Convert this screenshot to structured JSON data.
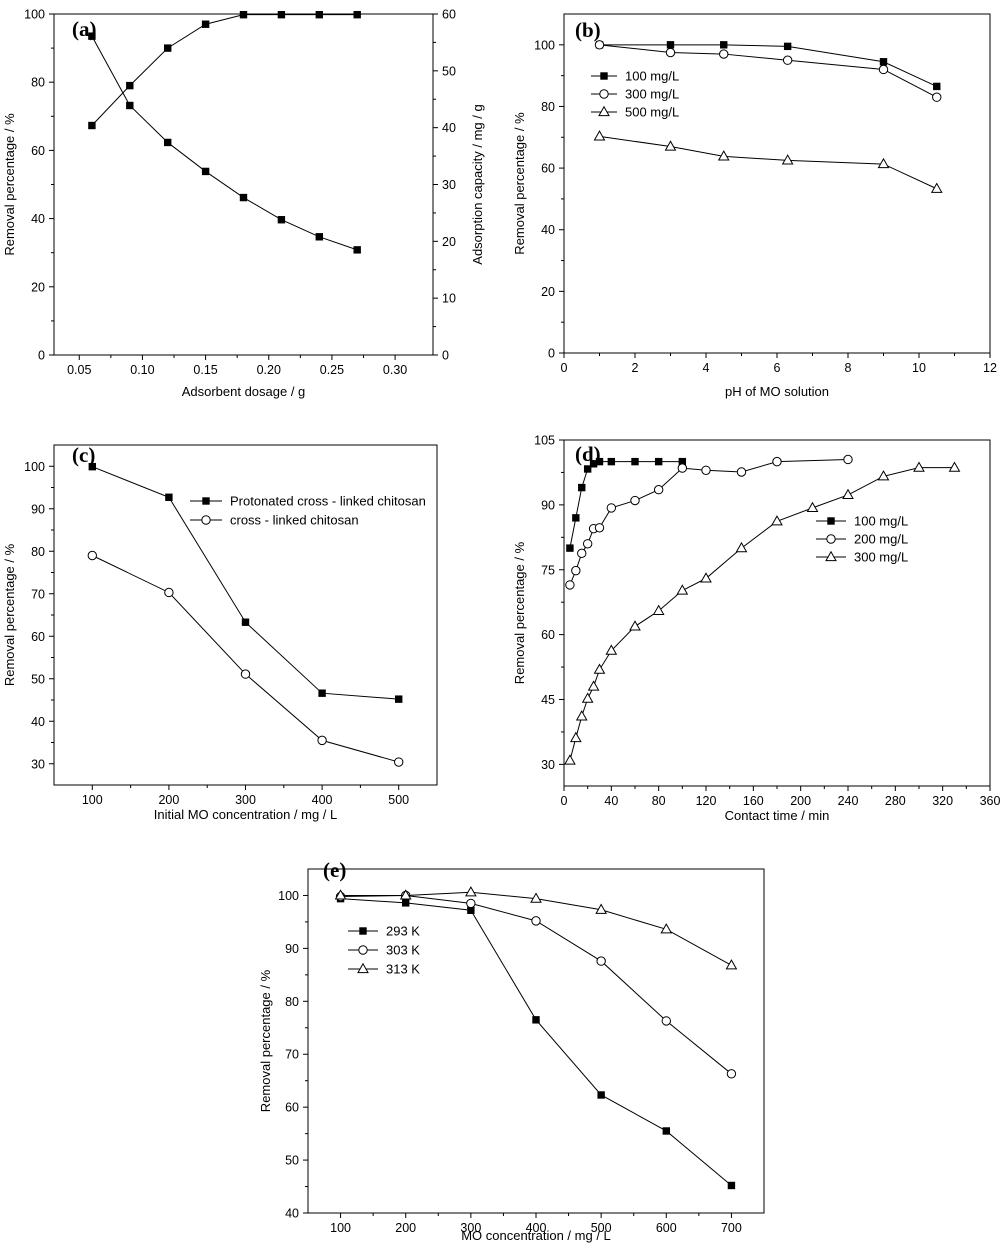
{
  "chart_data": [
    {
      "panel": "(a)",
      "type": "line",
      "xlabel": "Adsorbent dosage / g",
      "ylabel": "Removal percentage / %",
      "y2label": "Adsorption capacity / mg / g",
      "xlim": [
        0.03,
        0.33
      ],
      "ylim": [
        0,
        100
      ],
      "y2lim": [
        0,
        60
      ],
      "xticks": [
        "0.05",
        "0.10",
        "0.15",
        "0.20",
        "0.25",
        "0.30"
      ],
      "yticks": [
        "0",
        "20",
        "40",
        "60",
        "80",
        "100"
      ],
      "y2ticks": [
        "0",
        "10",
        "20",
        "30",
        "40",
        "50",
        "60"
      ],
      "series": [
        {
          "marker": "filled-square",
          "axis": "left",
          "x": [
            0.06,
            0.09,
            0.12,
            0.15,
            0.18,
            0.21,
            0.24,
            0.27
          ],
          "y": [
            67.3,
            79,
            90,
            97,
            99.8,
            99.8,
            99.8,
            99.8
          ]
        },
        {
          "marker": "filled-square",
          "axis": "right",
          "x": [
            0.06,
            0.09,
            0.12,
            0.15,
            0.18,
            0.21,
            0.24,
            0.27
          ],
          "y": [
            56.1,
            43.9,
            37.4,
            32.3,
            27.7,
            23.8,
            20.8,
            18.5
          ]
        }
      ]
    },
    {
      "panel": "(b)",
      "type": "line",
      "xlabel": "pH of MO solution",
      "ylabel": "Removal percentage / %",
      "xlim": [
        0,
        12
      ],
      "ylim": [
        0,
        110
      ],
      "xticks": [
        "0",
        "2",
        "4",
        "6",
        "8",
        "10",
        "12"
      ],
      "yticks": [
        "0",
        "20",
        "40",
        "60",
        "80",
        "100"
      ],
      "legend_position": "top-left",
      "series": [
        {
          "name": "100 mg/L",
          "marker": "filled-square",
          "x": [
            1,
            3,
            4.5,
            6.3,
            9,
            10.5
          ],
          "y": [
            100,
            100,
            100,
            99.5,
            94.5,
            86.5
          ]
        },
        {
          "name": "300 mg/L",
          "marker": "open-circle",
          "x": [
            1,
            3,
            4.5,
            6.3,
            9,
            10.5
          ],
          "y": [
            100,
            97.5,
            97,
            95,
            92,
            83
          ]
        },
        {
          "name": "500 mg/L",
          "marker": "open-triangle",
          "x": [
            1,
            3,
            4.5,
            6.3,
            9,
            10.5
          ],
          "y": [
            70.3,
            67,
            63.8,
            62.5,
            61.3,
            53.3
          ]
        }
      ]
    },
    {
      "panel": "(c)",
      "type": "line",
      "xlabel": "Initial MO concentration / mg / L",
      "ylabel": "Removal percentage / %",
      "xlim": [
        50,
        550
      ],
      "ylim": [
        25,
        105
      ],
      "xticks": [
        "100",
        "200",
        "300",
        "400",
        "500"
      ],
      "yticks": [
        "30",
        "40",
        "50",
        "60",
        "70",
        "80",
        "90",
        "100"
      ],
      "legend_position": "top-right",
      "series": [
        {
          "name": "Protonated cross - linked chitosan",
          "marker": "filled-square",
          "x": [
            100,
            200,
            300,
            400,
            500
          ],
          "y": [
            99.9,
            92.7,
            63.3,
            46.6,
            45.2
          ]
        },
        {
          "name": "cross - linked chitosan",
          "marker": "open-circle",
          "x": [
            100,
            200,
            300,
            400,
            500
          ],
          "y": [
            79,
            70.3,
            51.1,
            35.5,
            30.4
          ]
        }
      ]
    },
    {
      "panel": "(d)",
      "type": "line",
      "xlabel": "Contact time / min",
      "ylabel": "Removal percentage / %",
      "xlim": [
        0,
        360
      ],
      "ylim": [
        25,
        105
      ],
      "xticks": [
        "0",
        "40",
        "80",
        "120",
        "160",
        "200",
        "240",
        "280",
        "320",
        "360"
      ],
      "yticks": [
        "30",
        "45",
        "60",
        "75",
        "90",
        "105"
      ],
      "legend_position": "right",
      "series": [
        {
          "name": "100 mg/L",
          "marker": "filled-square",
          "x": [
            5,
            10,
            15,
            20,
            25,
            30,
            40,
            60,
            80,
            100
          ],
          "y": [
            80,
            87,
            94,
            98.3,
            99.5,
            100,
            100,
            100,
            100,
            100
          ]
        },
        {
          "name": "200 mg/L",
          "marker": "open-circle",
          "x": [
            5,
            10,
            15,
            20,
            25,
            30,
            40,
            60,
            80,
            100,
            120,
            150,
            180,
            240
          ],
          "y": [
            71.5,
            74.8,
            78.8,
            81,
            84.5,
            84.7,
            89.3,
            91,
            93.5,
            98.5,
            98,
            97.6,
            100,
            100.5
          ]
        },
        {
          "name": "300 mg/L",
          "marker": "open-triangle",
          "x": [
            5,
            10,
            15,
            20,
            25,
            30,
            40,
            60,
            80,
            100,
            120,
            150,
            180,
            210,
            240,
            270,
            300,
            330
          ],
          "y": [
            30.9,
            36.1,
            41.1,
            45.2,
            48,
            51.9,
            56.3,
            61.9,
            65.5,
            70.2,
            73,
            80,
            86.2,
            89.3,
            92.3,
            96.6,
            98.6,
            98.6
          ]
        }
      ]
    },
    {
      "panel": "(e)",
      "type": "line",
      "xlabel": "MO concentration / mg / L",
      "ylabel": "Removal percentage / %",
      "xlim": [
        50,
        750
      ],
      "ylim": [
        40,
        105
      ],
      "xticks": [
        "100",
        "200",
        "300",
        "400",
        "500",
        "600",
        "700"
      ],
      "yticks": [
        "40",
        "50",
        "60",
        "70",
        "80",
        "90",
        "100"
      ],
      "legend_position": "left",
      "series": [
        {
          "name": "293 K",
          "marker": "filled-square",
          "x": [
            100,
            200,
            300,
            400,
            500,
            600,
            700
          ],
          "y": [
            99.4,
            98.6,
            97.2,
            76.5,
            62.3,
            55.5,
            45.2
          ]
        },
        {
          "name": "303 K",
          "marker": "open-circle",
          "x": [
            100,
            200,
            300,
            400,
            500,
            600,
            700
          ],
          "y": [
            99.8,
            100,
            98.5,
            95.2,
            87.6,
            76.3,
            66.3
          ]
        },
        {
          "name": "313 K",
          "marker": "open-triangle",
          "x": [
            100,
            200,
            300,
            400,
            500,
            600,
            700
          ],
          "y": [
            100,
            100,
            100.6,
            99.4,
            97.3,
            93.6,
            86.8
          ]
        }
      ]
    }
  ]
}
